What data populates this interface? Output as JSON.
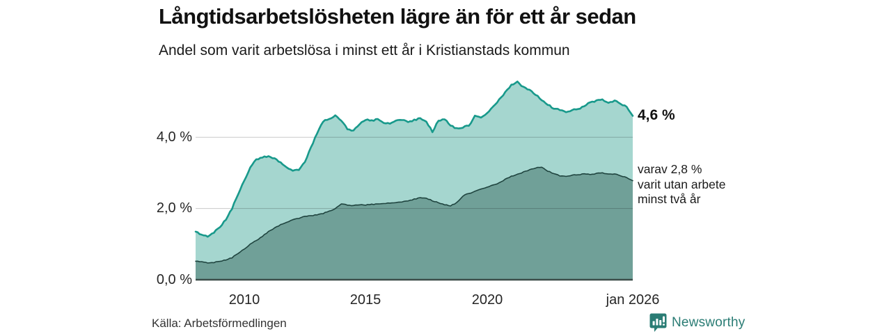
{
  "header": {
    "title": "Långtidsarbetslösheten lägre än för ett år sedan",
    "subtitle": "Andel som varit arbetslösa i minst ett år i Kristianstads kommun"
  },
  "chart_data": {
    "type": "area",
    "title": "Långtidsarbetslösheten lägre än för ett år sedan",
    "subtitle": "Andel som varit arbetslösa i minst ett år i Kristianstads kommun",
    "x_range": [
      2008,
      2026
    ],
    "ylim": [
      0,
      5.8
    ],
    "grid": true,
    "y_ticks": [
      {
        "value": 0,
        "label": "0,0 %"
      },
      {
        "value": 2,
        "label": "2,0 %"
      },
      {
        "value": 4,
        "label": "4,0 %"
      }
    ],
    "x_ticks": [
      {
        "value": 2010,
        "label": "2010"
      },
      {
        "value": 2015,
        "label": "2015"
      },
      {
        "value": 2020,
        "label": "2020"
      },
      {
        "value": 2026,
        "label": "jan 2026"
      }
    ],
    "x": [
      2008,
      2008.25,
      2008.5,
      2008.75,
      2009,
      2009.25,
      2009.5,
      2009.75,
      2010,
      2010.25,
      2010.5,
      2010.75,
      2011,
      2011.25,
      2011.5,
      2011.75,
      2012,
      2012.25,
      2012.5,
      2012.75,
      2013,
      2013.25,
      2013.5,
      2013.75,
      2014,
      2014.25,
      2014.5,
      2014.75,
      2015,
      2015.25,
      2015.5,
      2015.75,
      2016,
      2016.25,
      2016.5,
      2016.75,
      2017,
      2017.25,
      2017.5,
      2017.75,
      2018,
      2018.25,
      2018.5,
      2018.75,
      2019,
      2019.25,
      2019.5,
      2019.75,
      2020,
      2020.25,
      2020.5,
      2020.75,
      2021,
      2021.25,
      2021.5,
      2021.75,
      2022,
      2022.25,
      2022.5,
      2022.75,
      2023,
      2023.25,
      2023.5,
      2023.75,
      2024,
      2024.25,
      2024.5,
      2024.75,
      2025,
      2025.25,
      2025.5,
      2025.75,
      2026
    ],
    "series": [
      {
        "name": "Andel arbetslösa minst ett år",
        "end_label": "4,6 %",
        "end_value": 4.6,
        "color": "#18998b",
        "fill": "#a5d6cf",
        "values": [
          1.35,
          1.25,
          1.21,
          1.32,
          1.48,
          1.7,
          2.0,
          2.4,
          2.78,
          3.15,
          3.38,
          3.44,
          3.46,
          3.4,
          3.3,
          3.17,
          3.05,
          3.08,
          3.3,
          3.72,
          4.1,
          4.45,
          4.5,
          4.62,
          4.45,
          4.24,
          4.18,
          4.36,
          4.5,
          4.47,
          4.5,
          4.4,
          4.38,
          4.46,
          4.48,
          4.44,
          4.48,
          4.53,
          4.42,
          4.16,
          4.46,
          4.5,
          4.34,
          4.24,
          4.28,
          4.32,
          4.6,
          4.56,
          4.68,
          4.86,
          5.06,
          5.26,
          5.46,
          5.56,
          5.4,
          5.32,
          5.2,
          5.04,
          4.92,
          4.8,
          4.78,
          4.72,
          4.75,
          4.8,
          4.86,
          4.98,
          5.02,
          5.06,
          4.97,
          5.03,
          4.94,
          4.86,
          4.6
        ]
      },
      {
        "name": "varav utan arbete minst två år",
        "end_label": "varav 2,8 %",
        "end_value": 2.8,
        "color": "#1f443f",
        "fill": "#70a098",
        "values": [
          0.52,
          0.5,
          0.47,
          0.48,
          0.52,
          0.56,
          0.62,
          0.74,
          0.86,
          1.0,
          1.1,
          1.22,
          1.35,
          1.45,
          1.55,
          1.62,
          1.68,
          1.72,
          1.78,
          1.8,
          1.82,
          1.86,
          1.92,
          2.0,
          2.12,
          2.1,
          2.08,
          2.1,
          2.1,
          2.12,
          2.12,
          2.14,
          2.15,
          2.16,
          2.18,
          2.22,
          2.26,
          2.3,
          2.28,
          2.22,
          2.16,
          2.1,
          2.08,
          2.16,
          2.35,
          2.42,
          2.48,
          2.55,
          2.6,
          2.66,
          2.72,
          2.82,
          2.9,
          2.96,
          3.02,
          3.08,
          3.14,
          3.16,
          3.05,
          2.98,
          2.92,
          2.91,
          2.93,
          2.95,
          2.97,
          2.95,
          2.98,
          3.0,
          2.97,
          2.97,
          2.92,
          2.87,
          2.78
        ]
      }
    ],
    "annotations": {
      "total": "4,6 %",
      "detail": "varav 2,8 %\nvarit utan arbete\nminst två år"
    }
  },
  "footer": {
    "source": "Källa: Arbetsförmedlingen",
    "logo_text": "Newsworthy"
  },
  "colors": {
    "accent_teal": "#18998b",
    "light_fill": "#a5d6cf",
    "dark_fill": "#70a098",
    "axis_line": "#3c4d49",
    "gridline": "rgba(0,0,0,0.21)",
    "logo_teal": "#2a7c74"
  }
}
